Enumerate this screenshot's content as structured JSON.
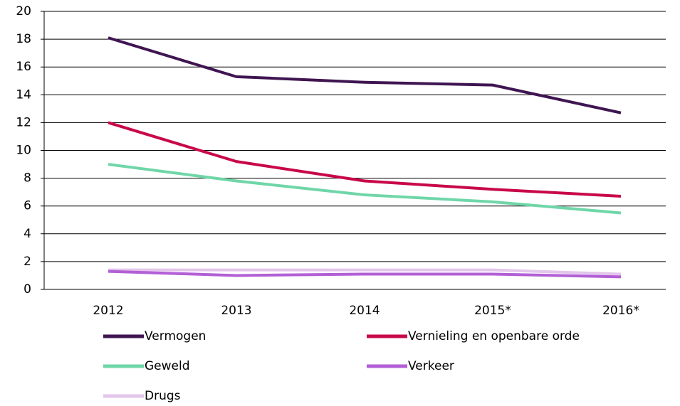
{
  "chart_data": {
    "type": "line",
    "categories": [
      "2012",
      "2013",
      "2014",
      "2015*",
      "2016*"
    ],
    "series": [
      {
        "name": "Vermogen",
        "color": "#3f1551",
        "values": [
          18.1,
          15.3,
          14.9,
          14.7,
          12.7
        ]
      },
      {
        "name": "Vernieling en openbare orde",
        "color": "#c8084a",
        "values": [
          12.0,
          9.2,
          7.8,
          7.2,
          6.7
        ]
      },
      {
        "name": "Geweld",
        "color": "#6fd6a8",
        "values": [
          9.0,
          7.8,
          6.8,
          6.3,
          5.5
        ]
      },
      {
        "name": "Verkeer",
        "color": "#b25fd6",
        "values": [
          1.3,
          1.0,
          1.1,
          1.1,
          0.9
        ]
      },
      {
        "name": "Drugs",
        "color": "#e3c6ec",
        "values": [
          1.4,
          1.4,
          1.4,
          1.4,
          1.1
        ]
      }
    ],
    "ylim": [
      0,
      20
    ],
    "yticks": [
      0,
      2,
      4,
      6,
      8,
      10,
      12,
      14,
      16,
      18,
      20
    ],
    "grid": true
  }
}
